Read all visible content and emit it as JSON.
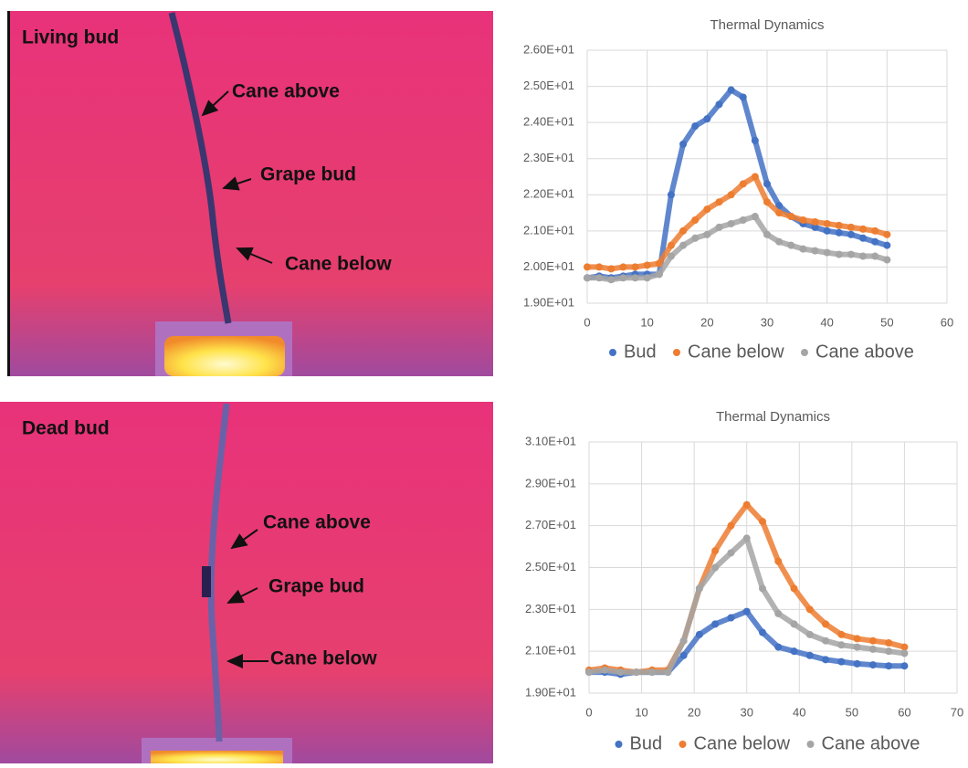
{
  "images": [
    {
      "title": "Living bud",
      "labels": [
        "Cane above",
        "Grape bud",
        "Cane below"
      ]
    },
    {
      "title": "Dead bud",
      "labels": [
        "Cane above",
        "Grape bud",
        "Cane below"
      ]
    }
  ],
  "chart_data": [
    {
      "type": "scatter",
      "title": "Thermal Dynamics",
      "x": [
        0,
        2,
        4,
        6,
        8,
        10,
        12,
        14,
        16,
        18,
        20,
        22,
        24,
        26,
        28,
        30,
        32,
        34,
        36,
        38,
        40,
        42,
        44,
        46,
        48,
        50
      ],
      "series": [
        {
          "name": "Bud",
          "color": "#4472c4",
          "values": [
            19.7,
            19.75,
            19.7,
            19.75,
            19.8,
            19.8,
            19.8,
            22.0,
            23.4,
            23.9,
            24.1,
            24.5,
            24.9,
            24.7,
            23.5,
            22.3,
            21.7,
            21.4,
            21.2,
            21.1,
            21.0,
            20.95,
            20.9,
            20.8,
            20.7,
            20.6
          ]
        },
        {
          "name": "Cane below",
          "color": "#ed7d31",
          "values": [
            20.0,
            20.0,
            19.95,
            20.0,
            20.0,
            20.05,
            20.1,
            20.6,
            21.0,
            21.3,
            21.6,
            21.8,
            22.0,
            22.3,
            22.5,
            21.8,
            21.5,
            21.4,
            21.3,
            21.25,
            21.2,
            21.15,
            21.1,
            21.05,
            21.0,
            20.9
          ]
        },
        {
          "name": "Cane above",
          "color": "#a5a5a5",
          "values": [
            19.7,
            19.7,
            19.65,
            19.7,
            19.7,
            19.7,
            19.8,
            20.3,
            20.6,
            20.8,
            20.9,
            21.1,
            21.2,
            21.3,
            21.4,
            20.9,
            20.7,
            20.6,
            20.5,
            20.45,
            20.4,
            20.35,
            20.35,
            20.3,
            20.3,
            20.2
          ]
        }
      ],
      "xlim": [
        0,
        60
      ],
      "xticks": [
        0,
        10,
        20,
        30,
        40,
        50,
        60
      ],
      "ylim": [
        19,
        26
      ],
      "yticks": [
        {
          "value": 19,
          "label": "1.90E+01"
        },
        {
          "value": 20,
          "label": "2.00E+01"
        },
        {
          "value": 21,
          "label": "2.10E+01"
        },
        {
          "value": 22,
          "label": "2.20E+01"
        },
        {
          "value": 23,
          "label": "2.30E+01"
        },
        {
          "value": 24,
          "label": "2.40E+01"
        },
        {
          "value": 25,
          "label": "2.50E+01"
        },
        {
          "value": 26,
          "label": "2.60E+01"
        }
      ],
      "grid": true,
      "legend": "bottom"
    },
    {
      "type": "scatter",
      "title": "Thermal Dynamics",
      "x": [
        0,
        3,
        6,
        9,
        12,
        15,
        18,
        21,
        24,
        27,
        30,
        33,
        36,
        39,
        42,
        45,
        48,
        51,
        54,
        57,
        60
      ],
      "series": [
        {
          "name": "Bud",
          "color": "#4472c4",
          "values": [
            20.0,
            20.0,
            19.9,
            20.0,
            20.0,
            20.0,
            20.8,
            21.8,
            22.3,
            22.6,
            22.9,
            21.9,
            21.2,
            21.0,
            20.8,
            20.6,
            20.5,
            20.4,
            20.35,
            20.3,
            20.3
          ]
        },
        {
          "name": "Cane below",
          "color": "#ed7d31",
          "values": [
            20.1,
            20.2,
            20.1,
            20.0,
            20.1,
            20.1,
            21.5,
            24.0,
            25.8,
            27.0,
            28.0,
            27.2,
            25.3,
            24.0,
            23.0,
            22.3,
            21.8,
            21.6,
            21.5,
            21.4,
            21.2
          ]
        },
        {
          "name": "Cane above",
          "color": "#a5a5a5",
          "values": [
            20.0,
            20.1,
            20.0,
            20.0,
            20.0,
            20.0,
            21.5,
            24.0,
            25.0,
            25.7,
            26.4,
            24.0,
            22.8,
            22.3,
            21.8,
            21.5,
            21.3,
            21.2,
            21.1,
            21.0,
            20.9
          ]
        }
      ],
      "xlim": [
        0,
        70
      ],
      "xticks": [
        0,
        10,
        20,
        30,
        40,
        50,
        60,
        70
      ],
      "ylim": [
        19,
        31
      ],
      "yticks": [
        {
          "value": 19,
          "label": "1.90E+01"
        },
        {
          "value": 21,
          "label": "2.10E+01"
        },
        {
          "value": 23,
          "label": "2.30E+01"
        },
        {
          "value": 25,
          "label": "2.50E+01"
        },
        {
          "value": 27,
          "label": "2.70E+01"
        },
        {
          "value": 29,
          "label": "2.90E+01"
        },
        {
          "value": 31,
          "label": "3.10E+01"
        }
      ],
      "grid": true,
      "legend": "bottom"
    }
  ]
}
